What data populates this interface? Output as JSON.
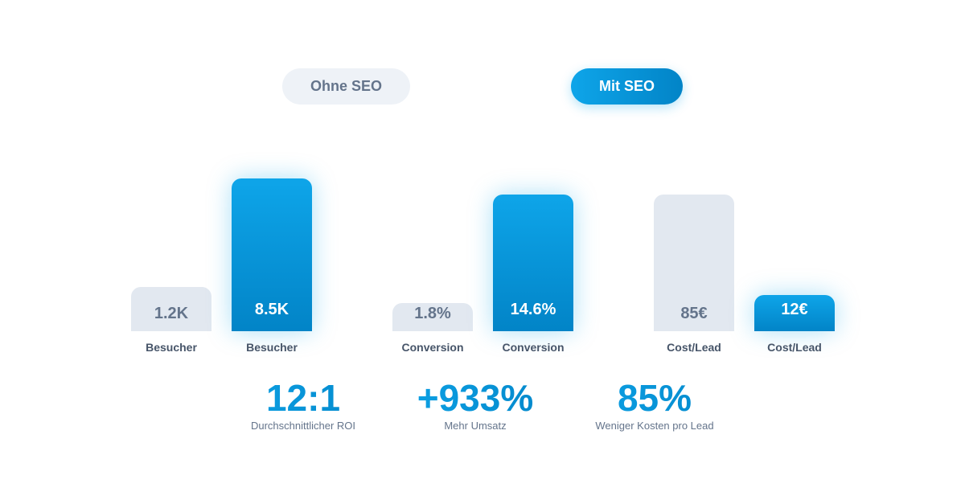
{
  "legend": {
    "without": "Ohne SEO",
    "with": "Mit SEO"
  },
  "colors": {
    "without": "#e2e8f0",
    "with": "#0ea5e9"
  },
  "chart_data": {
    "type": "bar",
    "categories": [
      "Besucher",
      "Besucher",
      "Conversion",
      "Conversion",
      "Cost/Lead",
      "Cost/Lead"
    ],
    "series_of_bar": [
      "Ohne SEO",
      "Mit SEO",
      "Ohne SEO",
      "Mit SEO",
      "Ohne SEO",
      "Mit SEO"
    ],
    "labels": [
      "1.2K",
      "8.5K",
      "1.8%",
      "14.6%",
      "85€",
      "12€"
    ],
    "values": [
      1200,
      8500,
      1.8,
      14.6,
      85,
      12
    ]
  },
  "stats": [
    {
      "value": "12:1",
      "label": "Durchschnittlicher ROI"
    },
    {
      "value": "+933%",
      "label": "Mehr Umsatz"
    },
    {
      "value": "85%",
      "label": "Weniger Kosten pro Lead"
    }
  ]
}
